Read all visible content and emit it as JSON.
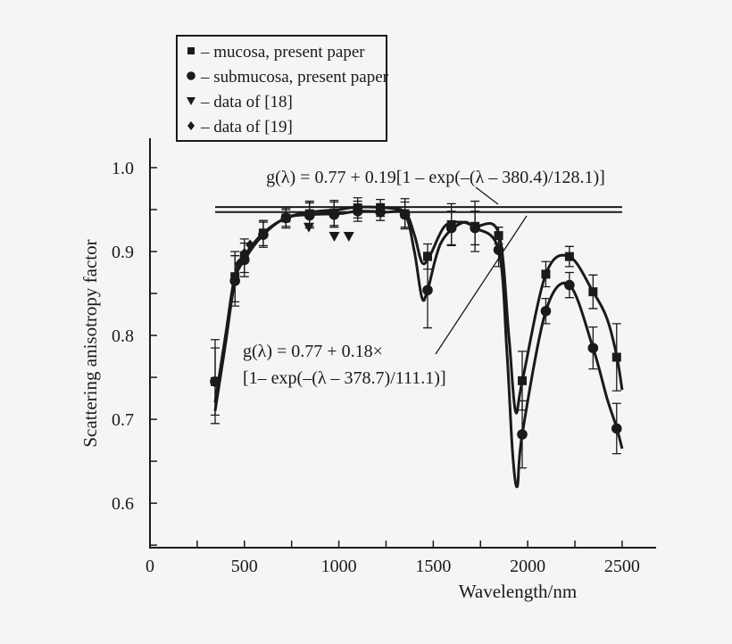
{
  "chart_data": {
    "type": "line",
    "xlabel": "Wavelength/nm",
    "ylabel": "Scattering anisotropy factor",
    "xlim": [
      0,
      2680
    ],
    "ylim": [
      0.547,
      1.035
    ],
    "x_ticks": [
      0,
      500,
      1000,
      1500,
      2000,
      2500
    ],
    "x_minor_step": 250,
    "y_ticks": [
      "0.6",
      "0.7",
      "0.8",
      "0.9",
      "1.0"
    ],
    "y_minor_step": 0.05,
    "grid": false,
    "legend_placement": "top",
    "legend": [
      {
        "marker": "square",
        "label": "– mucosa, present paper"
      },
      {
        "marker": "circle",
        "label": "– submucosa, present paper"
      },
      {
        "marker": "triangle-down",
        "label": "– data of [18]"
      },
      {
        "marker": "diamond",
        "label": "– data of [19]"
      }
    ],
    "series": [
      {
        "name": "mucosa, present paper",
        "marker": "square",
        "points": [
          [
            345,
            0.745,
            0.05
          ],
          [
            450,
            0.87,
            0.03
          ],
          [
            500,
            0.895,
            0.02
          ],
          [
            600,
            0.922,
            0.015
          ],
          [
            720,
            0.94,
            0.012
          ],
          [
            845,
            0.945,
            0.015
          ],
          [
            975,
            0.946,
            0.015
          ],
          [
            1100,
            0.952,
            0.012
          ],
          [
            1220,
            0.952,
            0.01
          ],
          [
            1350,
            0.945,
            0.018
          ],
          [
            1470,
            0.894,
            0.015
          ],
          [
            1596,
            0.932,
            0.025
          ],
          [
            1721,
            0.93,
            0.03
          ],
          [
            1846,
            0.919,
            0.01
          ],
          [
            1971,
            0.746,
            0.035
          ],
          [
            2096,
            0.873,
            0.015
          ],
          [
            2221,
            0.894,
            0.012
          ],
          [
            2346,
            0.852,
            0.02
          ],
          [
            2471,
            0.774,
            0.04
          ]
        ],
        "curve": [
          [
            345,
            0.72
          ],
          [
            400,
            0.8
          ],
          [
            450,
            0.872
          ],
          [
            500,
            0.895
          ],
          [
            600,
            0.922
          ],
          [
            720,
            0.94
          ],
          [
            850,
            0.947
          ],
          [
            1000,
            0.95
          ],
          [
            1100,
            0.953
          ],
          [
            1250,
            0.952
          ],
          [
            1350,
            0.947
          ],
          [
            1400,
            0.92
          ],
          [
            1440,
            0.887
          ],
          [
            1480,
            0.894
          ],
          [
            1560,
            0.93
          ],
          [
            1650,
            0.935
          ],
          [
            1721,
            0.93
          ],
          [
            1846,
            0.922
          ],
          [
            1900,
            0.8
          ],
          [
            1935,
            0.71
          ],
          [
            1971,
            0.745
          ],
          [
            2096,
            0.873
          ],
          [
            2221,
            0.894
          ],
          [
            2346,
            0.852
          ],
          [
            2420,
            0.82
          ],
          [
            2471,
            0.776
          ],
          [
            2500,
            0.735
          ]
        ]
      },
      {
        "name": "submucosa, present paper",
        "marker": "circle",
        "points": [
          [
            345,
            0.745,
            0.04
          ],
          [
            450,
            0.865,
            0.03
          ],
          [
            500,
            0.89,
            0.02
          ],
          [
            600,
            0.92,
            0.015
          ],
          [
            720,
            0.94,
            0.01
          ],
          [
            845,
            0.943,
            0.015
          ],
          [
            975,
            0.944,
            0.015
          ],
          [
            1100,
            0.948,
            0.012
          ],
          [
            1220,
            0.947,
            0.01
          ],
          [
            1350,
            0.944,
            0.015
          ],
          [
            1470,
            0.854,
            0.045
          ],
          [
            1596,
            0.928,
            0.02
          ],
          [
            1721,
            0.928,
            0.02
          ],
          [
            1846,
            0.902,
            0.02
          ],
          [
            1971,
            0.682,
            0.04
          ],
          [
            2096,
            0.829,
            0.015
          ],
          [
            2221,
            0.86,
            0.015
          ],
          [
            2346,
            0.785,
            0.025
          ],
          [
            2471,
            0.689,
            0.03
          ]
        ],
        "curve": [
          [
            345,
            0.71
          ],
          [
            400,
            0.79
          ],
          [
            450,
            0.865
          ],
          [
            500,
            0.89
          ],
          [
            600,
            0.92
          ],
          [
            720,
            0.94
          ],
          [
            850,
            0.944
          ],
          [
            1000,
            0.945
          ],
          [
            1100,
            0.948
          ],
          [
            1250,
            0.947
          ],
          [
            1350,
            0.944
          ],
          [
            1400,
            0.9
          ],
          [
            1440,
            0.845
          ],
          [
            1470,
            0.854
          ],
          [
            1540,
            0.91
          ],
          [
            1650,
            0.934
          ],
          [
            1721,
            0.928
          ],
          [
            1846,
            0.902
          ],
          [
            1890,
            0.78
          ],
          [
            1920,
            0.66
          ],
          [
            1945,
            0.62
          ],
          [
            1971,
            0.682
          ],
          [
            2096,
            0.829
          ],
          [
            2221,
            0.86
          ],
          [
            2346,
            0.785
          ],
          [
            2420,
            0.725
          ],
          [
            2471,
            0.69
          ],
          [
            2500,
            0.665
          ]
        ]
      },
      {
        "name": "data of [18]",
        "marker": "triangle-down",
        "points": [
          [
            841,
            0.929
          ],
          [
            976,
            0.918
          ],
          [
            1053,
            0.918
          ]
        ]
      },
      {
        "name": "data of [19]",
        "marker": "diamond",
        "points": [
          [
            470,
            0.885
          ],
          [
            500,
            0.898
          ],
          [
            530,
            0.908
          ]
        ]
      }
    ],
    "fit_lines": [
      {
        "label": "g(λ) = 0.77 + 0.19[1 – exp(–(λ – 380.4)/128.1)]",
        "value": 0.953,
        "x_range": [
          345,
          2500
        ]
      },
      {
        "label_line1": "g(λ) = 0.77 + 0.18×",
        "label_line2": "[1– exp(–(λ – 378.7)/111.1)]",
        "value": 0.947,
        "x_range": [
          345,
          2500
        ]
      }
    ]
  }
}
